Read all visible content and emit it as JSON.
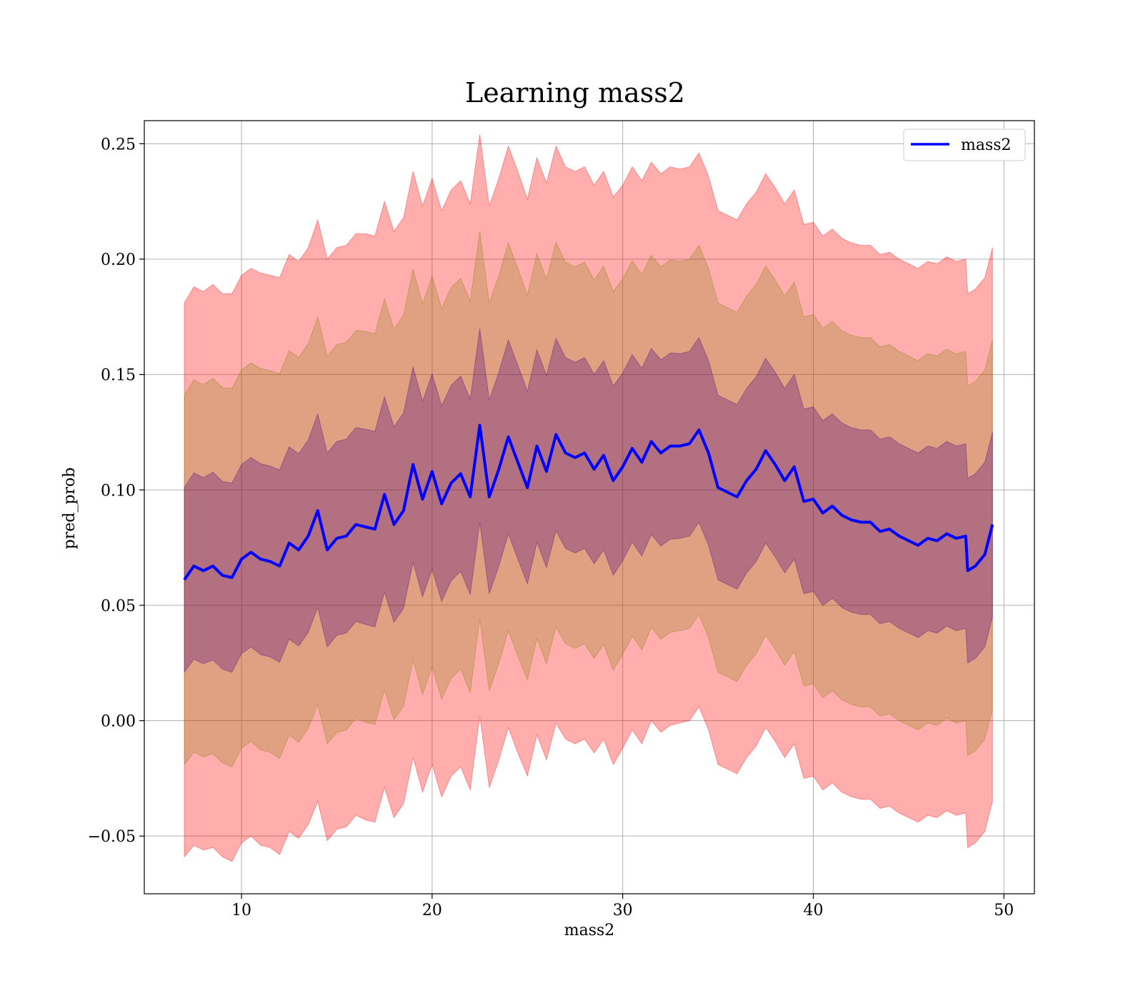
{
  "chart_data": {
    "type": "line",
    "title": "Learning mass2",
    "xlabel": "mass2",
    "ylabel": "pred_prob",
    "xlim": [
      4.9,
      51.6
    ],
    "ylim": [
      -0.075,
      0.26
    ],
    "x_ticks": [
      10,
      20,
      30,
      40,
      50
    ],
    "x_tick_labels": [
      "10",
      "20",
      "30",
      "40",
      "50"
    ],
    "y_ticks": [
      -0.05,
      0.0,
      0.05,
      0.1,
      0.15,
      0.2,
      0.25
    ],
    "y_tick_labels": [
      "−0.05",
      "0.00",
      "0.05",
      "0.10",
      "0.15",
      "0.20",
      "0.25"
    ],
    "grid": true,
    "legend_position": "top-right",
    "series": [
      {
        "name": "mass2",
        "color": "#0000ff",
        "x": [
          7.0,
          7.5,
          8.0,
          8.5,
          9.0,
          9.5,
          10.0,
          10.5,
          11.0,
          11.5,
          12.0,
          12.5,
          13.0,
          13.5,
          14.0,
          14.5,
          15.0,
          15.5,
          16.0,
          16.5,
          17.0,
          17.5,
          18.0,
          18.5,
          19.0,
          19.5,
          20.0,
          20.5,
          21.0,
          21.5,
          22.0,
          22.5,
          23.0,
          23.5,
          24.0,
          24.5,
          25.0,
          25.5,
          26.0,
          26.5,
          27.0,
          27.5,
          28.0,
          28.5,
          29.0,
          29.5,
          30.0,
          30.5,
          31.0,
          31.5,
          32.0,
          32.5,
          33.0,
          33.5,
          34.0,
          34.5,
          35.0,
          35.5,
          36.0,
          36.5,
          37.0,
          37.5,
          38.0,
          38.5,
          39.0,
          39.5,
          40.0,
          40.5,
          41.0,
          41.5,
          42.0,
          42.5,
          43.0,
          43.5,
          44.0,
          44.5,
          45.0,
          45.5,
          46.0,
          46.5,
          47.0,
          47.5,
          48.0,
          48.1,
          48.5,
          49.0,
          49.4
        ],
        "y": [
          0.061,
          0.067,
          0.065,
          0.067,
          0.063,
          0.062,
          0.07,
          0.073,
          0.07,
          0.069,
          0.067,
          0.077,
          0.074,
          0.08,
          0.091,
          0.074,
          0.079,
          0.08,
          0.085,
          0.084,
          0.083,
          0.098,
          0.085,
          0.091,
          0.111,
          0.096,
          0.108,
          0.094,
          0.103,
          0.107,
          0.097,
          0.128,
          0.097,
          0.109,
          0.123,
          0.112,
          0.101,
          0.119,
          0.108,
          0.124,
          0.116,
          0.114,
          0.116,
          0.109,
          0.115,
          0.104,
          0.11,
          0.118,
          0.112,
          0.121,
          0.116,
          0.119,
          0.119,
          0.12,
          0.126,
          0.116,
          0.101,
          0.099,
          0.097,
          0.104,
          0.109,
          0.117,
          0.111,
          0.104,
          0.11,
          0.095,
          0.096,
          0.09,
          0.093,
          0.089,
          0.087,
          0.086,
          0.086,
          0.082,
          0.083,
          0.08,
          0.078,
          0.076,
          0.079,
          0.078,
          0.081,
          0.079,
          0.08,
          0.065,
          0.067,
          0.072,
          0.085
        ]
      }
    ],
    "bands": [
      {
        "color": "#ff0000",
        "opacity": 0.32,
        "sigma": 3,
        "half_widths": [
          0.12,
          0.121,
          0.121,
          0.122,
          0.122,
          0.123,
          0.123,
          0.123,
          0.124,
          0.124,
          0.125,
          0.125,
          0.125,
          0.125,
          0.126,
          0.126,
          0.126,
          0.126,
          0.126,
          0.127,
          0.127,
          0.127,
          0.127,
          0.127,
          0.127,
          0.127,
          0.127,
          0.127,
          0.127,
          0.127,
          0.127,
          0.126,
          0.126,
          0.126,
          0.126,
          0.126,
          0.125,
          0.125,
          0.125,
          0.125,
          0.124,
          0.124,
          0.124,
          0.123,
          0.123,
          0.123,
          0.122,
          0.122,
          0.122,
          0.121,
          0.121,
          0.121,
          0.12,
          0.12,
          0.12,
          0.12,
          0.12,
          0.12,
          0.12,
          0.12,
          0.12,
          0.12,
          0.12,
          0.12,
          0.12,
          0.12,
          0.12,
          0.12,
          0.12,
          0.12,
          0.12,
          0.12,
          0.12,
          0.12,
          0.12,
          0.12,
          0.12,
          0.12,
          0.12,
          0.12,
          0.12,
          0.12,
          0.12,
          0.12,
          0.12,
          0.12,
          0.12
        ]
      },
      {
        "color": "#808000",
        "opacity": 0.25,
        "sigma": 2
      },
      {
        "color": "#4b0082",
        "opacity": 0.3,
        "sigma": 1
      }
    ]
  }
}
